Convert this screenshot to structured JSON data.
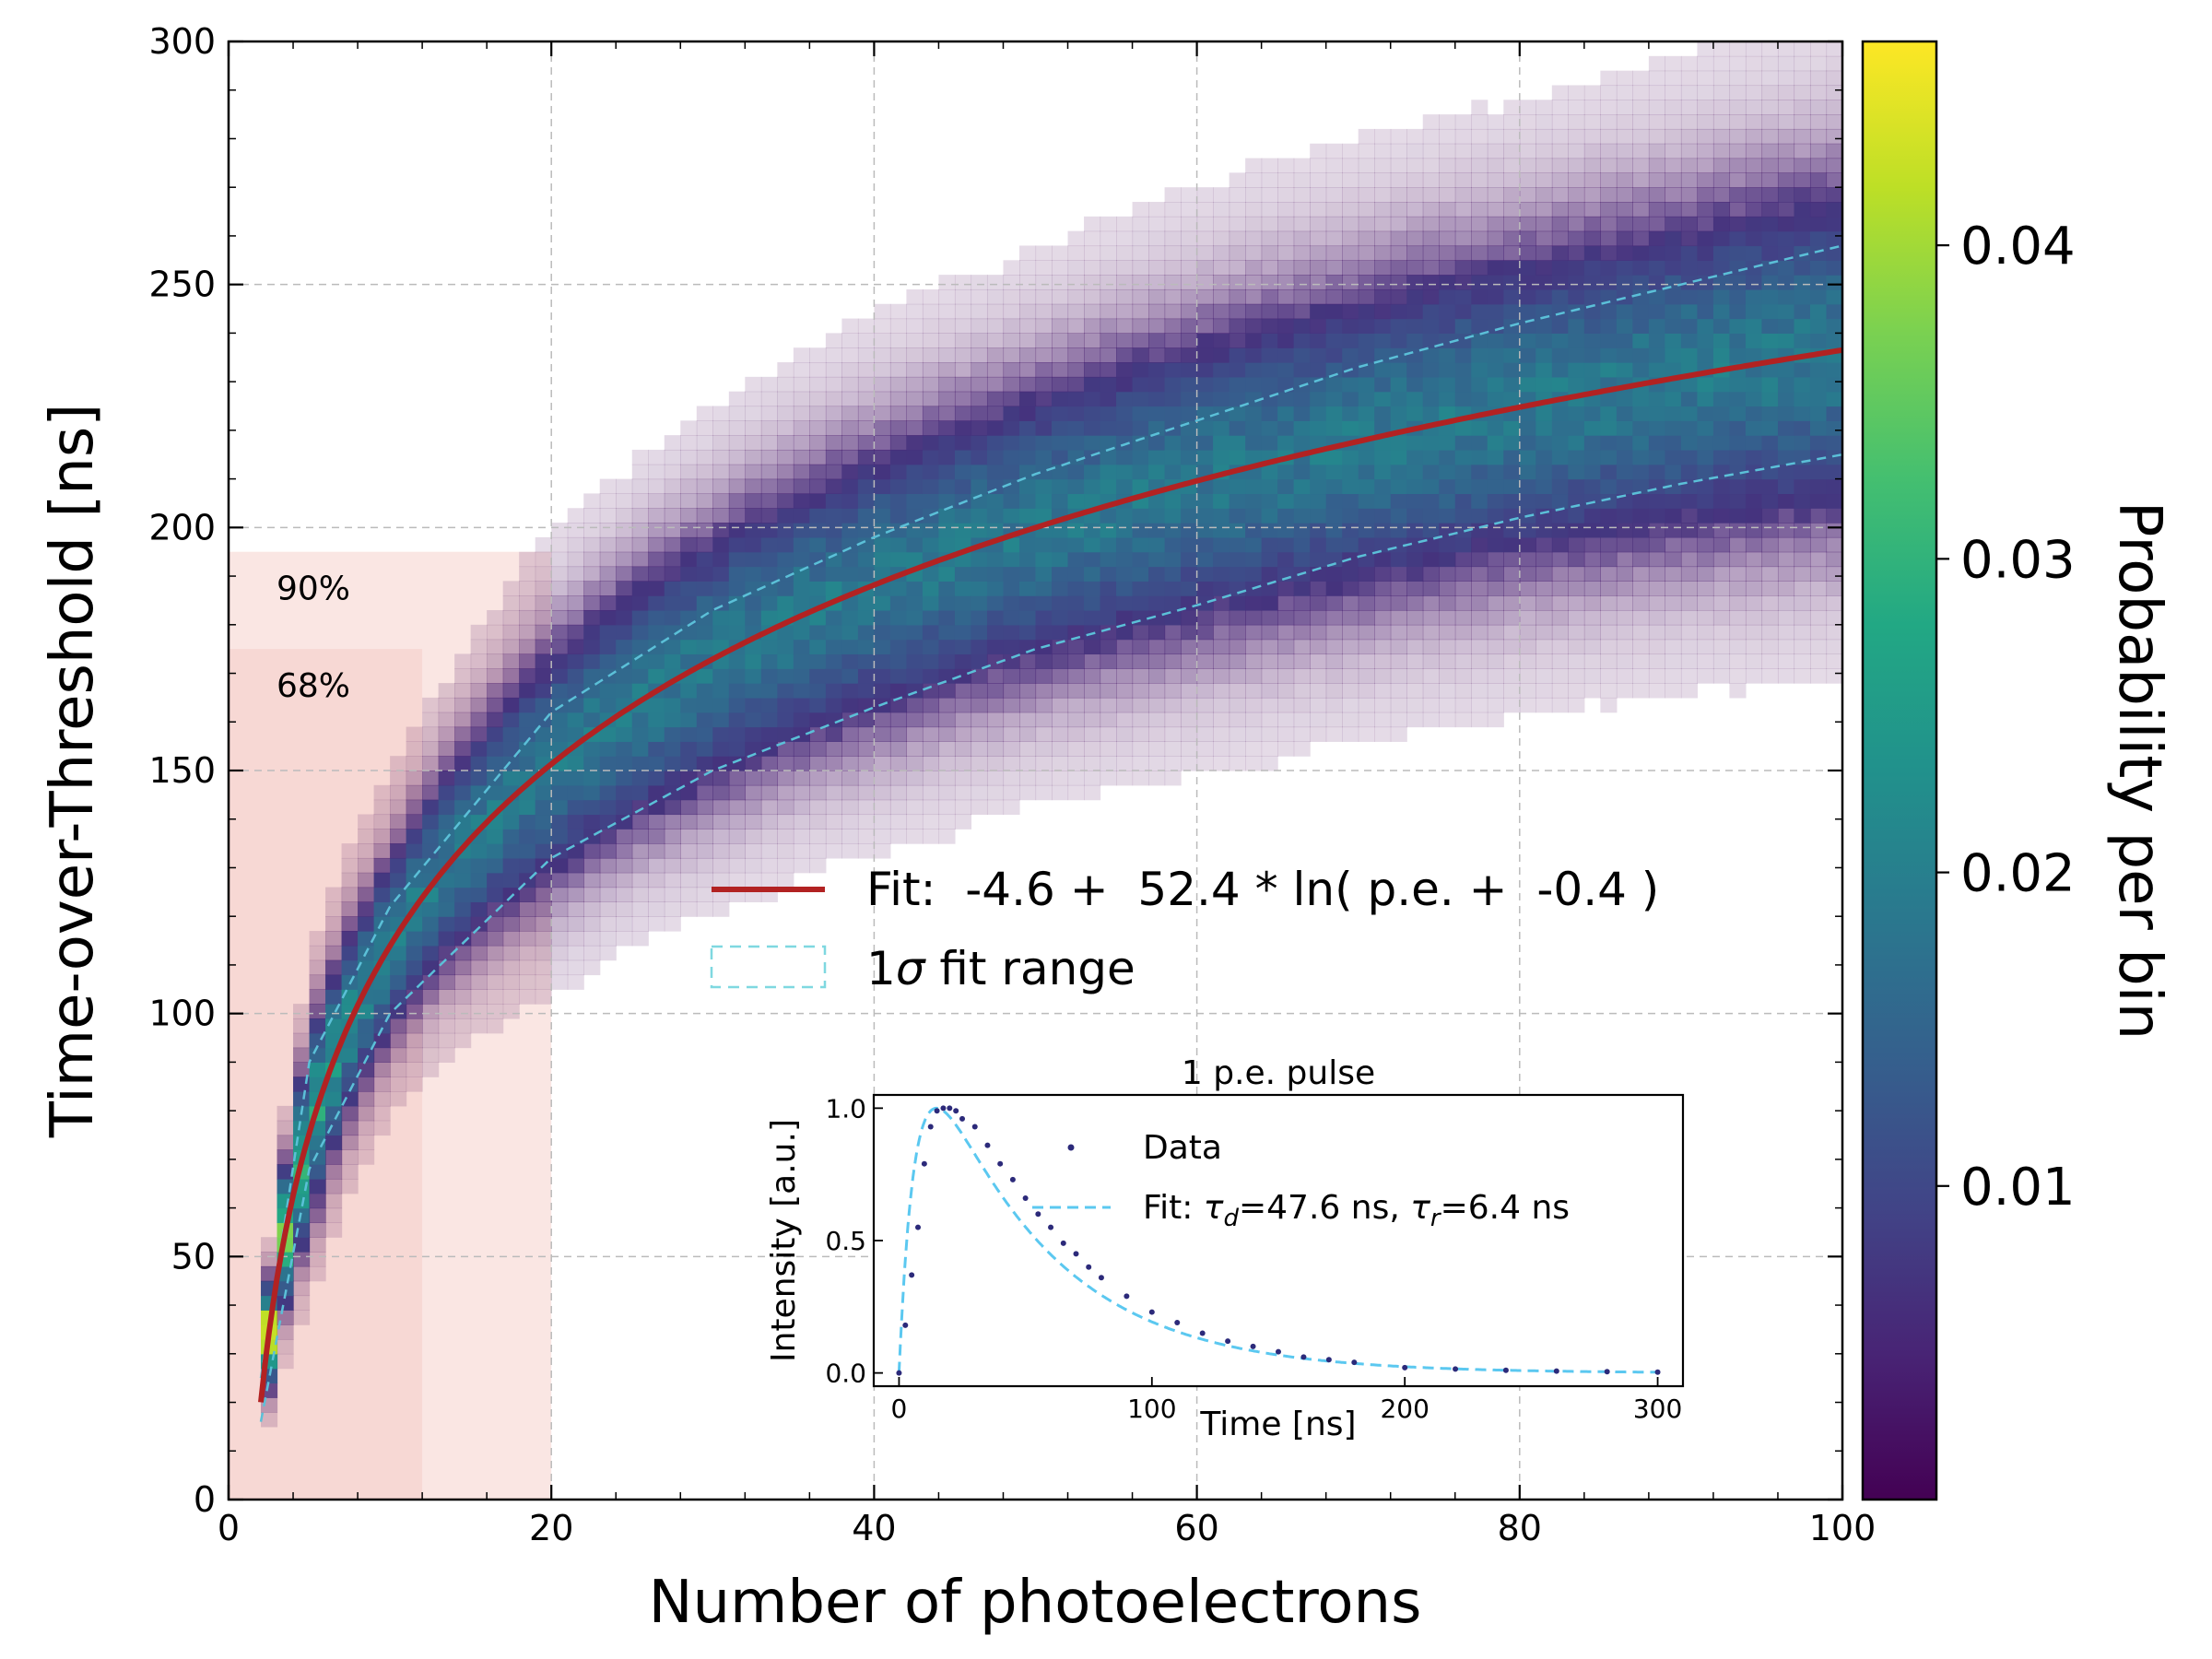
{
  "chart_data": [
    {
      "type": "heatmap",
      "name": "main",
      "xlabel": "Number of photoelectrons",
      "ylabel": "Time-over-Threshold [ns]",
      "xlim": [
        0,
        100
      ],
      "ylim": [
        0,
        300
      ],
      "xticks": [
        0,
        20,
        40,
        60,
        80,
        100
      ],
      "yticks": [
        0,
        50,
        100,
        150,
        200,
        250,
        300
      ],
      "grid": true,
      "colormap": "viridis",
      "colorbar": {
        "label": "Probability per bin",
        "ticks": [
          0.01,
          0.02,
          0.03,
          0.04
        ],
        "tick_labels": [
          "0.01",
          "0.02",
          "0.03",
          "0.04"
        ],
        "range": [
          0.0,
          0.0465
        ]
      },
      "fit": {
        "a": -4.6,
        "b": 52.4,
        "c": -0.4,
        "formula": "ToT = a + b * ln(p.e. + c)",
        "x_range": [
          2,
          100
        ],
        "color": "#b22222"
      },
      "sigma_band": {
        "lower": [
          [
            2,
            16
          ],
          [
            5,
            68
          ],
          [
            10,
            100
          ],
          [
            20,
            132
          ],
          [
            30,
            150
          ],
          [
            40,
            163
          ],
          [
            50,
            175
          ],
          [
            60,
            184
          ],
          [
            70,
            194
          ],
          [
            80,
            202
          ],
          [
            90,
            209
          ],
          [
            100,
            215
          ]
        ],
        "upper": [
          [
            2,
            25
          ],
          [
            5,
            90
          ],
          [
            10,
            122
          ],
          [
            20,
            162
          ],
          [
            30,
            183
          ],
          [
            40,
            198
          ],
          [
            50,
            211
          ],
          [
            60,
            222
          ],
          [
            70,
            233
          ],
          [
            80,
            242
          ],
          [
            90,
            250
          ],
          [
            100,
            258
          ]
        ],
        "color": "#5bc0d8"
      },
      "containment_regions": [
        {
          "label": "90%",
          "x": [
            0,
            20
          ],
          "y": [
            0,
            195
          ],
          "color": "#f4c8c0"
        },
        {
          "label": "68%",
          "x": [
            0,
            12
          ],
          "y": [
            0,
            175
          ],
          "color": "#f4c8c0"
        }
      ],
      "legend": {
        "fit_label": "Fit:  -4.6 +  52.4 * ln( p.e. +  -0.4 )",
        "band_label_main": "1",
        "band_label_sigma": "σ",
        "band_label_rest": " fit range",
        "position": "center-right"
      }
    },
    {
      "type": "line",
      "name": "inset",
      "title": "1 p.e. pulse",
      "xlabel": "Time [ns]",
      "ylabel": "Intensity [a.u.]",
      "xlim": [
        -10,
        310
      ],
      "ylim": [
        -0.05,
        1.05
      ],
      "xticks": [
        0,
        100,
        200,
        300
      ],
      "yticks": [
        0.0,
        0.5,
        1.0
      ],
      "ytick_labels": [
        "0.0",
        "0.5",
        "1.0"
      ],
      "data_points": [
        [
          0,
          0
        ],
        [
          2.5,
          0.18
        ],
        [
          5,
          0.37
        ],
        [
          7.5,
          0.55
        ],
        [
          10,
          0.79
        ],
        [
          12.5,
          0.93
        ],
        [
          15,
          0.99
        ],
        [
          17.5,
          1.0
        ],
        [
          20,
          1.0
        ],
        [
          22.5,
          0.99
        ],
        [
          25,
          0.96
        ],
        [
          30,
          0.93
        ],
        [
          35,
          0.86
        ],
        [
          40,
          0.79
        ],
        [
          45,
          0.73
        ],
        [
          50,
          0.66
        ],
        [
          55,
          0.6
        ],
        [
          60,
          0.55
        ],
        [
          65,
          0.49
        ],
        [
          70,
          0.45
        ],
        [
          75,
          0.4
        ],
        [
          80,
          0.36
        ],
        [
          90,
          0.29
        ],
        [
          100,
          0.23
        ],
        [
          110,
          0.19
        ],
        [
          120,
          0.15
        ],
        [
          130,
          0.12
        ],
        [
          140,
          0.1
        ],
        [
          150,
          0.08
        ],
        [
          160,
          0.06
        ],
        [
          170,
          0.05
        ],
        [
          180,
          0.04
        ],
        [
          200,
          0.02
        ],
        [
          220,
          0.015
        ],
        [
          240,
          0.01
        ],
        [
          260,
          0.007
        ],
        [
          280,
          0.005
        ],
        [
          300,
          0.003
        ]
      ],
      "fit": {
        "tau_d": 47.6,
        "tau_r": 6.4,
        "t0": 0,
        "color": "#5bc8f0"
      },
      "legend": {
        "data_label": "Data",
        "fit_prefix": "Fit: ",
        "tau_d_sym": "τ",
        "tau_d_sub": "d",
        "tau_d_val": "=47.6 ns, ",
        "tau_r_sym": "τ",
        "tau_r_sub": "r",
        "tau_r_val": "=6.4 ns"
      }
    }
  ]
}
